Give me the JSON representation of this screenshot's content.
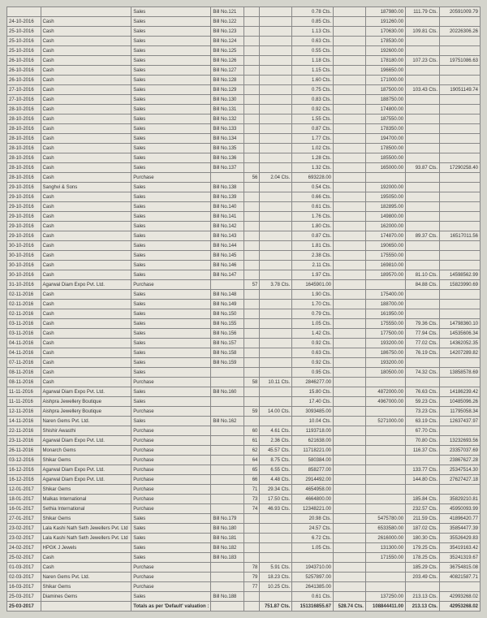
{
  "table": {
    "background": "#e8e6de",
    "border_color": "#888",
    "font_size": 6,
    "rows": [
      [
        "",
        "",
        "Sales",
        "Bill No.121",
        "",
        "",
        "0.78 Cts.",
        "",
        "187980.00",
        "111.79 Cts.",
        "20591009.79"
      ],
      [
        "24-10-2016",
        "Cash",
        "Sales",
        "Bill No.122",
        "",
        "",
        "0.85 Cts.",
        "",
        "191260.00",
        "",
        ""
      ],
      [
        "25-10-2016",
        "Cash",
        "Sales",
        "Bill No.123",
        "",
        "",
        "1.13 Cts.",
        "",
        "170630.00",
        "109.81 Cts.",
        "20226306.26"
      ],
      [
        "25-10-2016",
        "Cash",
        "Sales",
        "Bill No.124",
        "",
        "",
        "0.63 Cts.",
        "",
        "178530.00",
        "",
        ""
      ],
      [
        "25-10-2016",
        "Cash",
        "Sales",
        "Bill No.125",
        "",
        "",
        "0.55 Cts.",
        "",
        "192600.00",
        "",
        ""
      ],
      [
        "26-10-2016",
        "Cash",
        "Sales",
        "Bill No.126",
        "",
        "",
        "1.18 Cts.",
        "",
        "178180.00",
        "107.23 Cts.",
        "19751086.63"
      ],
      [
        "26-10-2016",
        "Cash",
        "Sales",
        "Bill No.127",
        "",
        "",
        "1.15 Cts.",
        "",
        "196650.00",
        "",
        ""
      ],
      [
        "26-10-2016",
        "Cash",
        "Sales",
        "Bill No.128",
        "",
        "",
        "1.60 Cts.",
        "",
        "171000.00",
        "",
        ""
      ],
      [
        "27-10-2016",
        "Cash",
        "Sales",
        "Bill No.129",
        "",
        "",
        "0.75 Cts.",
        "",
        "187500.00",
        "103.43 Cts.",
        "19051149.74"
      ],
      [
        "27-10-2016",
        "Cash",
        "Sales",
        "Bill No.130",
        "",
        "",
        "0.83 Cts.",
        "",
        "188750.00",
        "",
        ""
      ],
      [
        "28-10-2016",
        "Cash",
        "Sales",
        "Bill No.131",
        "",
        "",
        "0.92 Cts.",
        "",
        "174800.00",
        "",
        ""
      ],
      [
        "28-10-2016",
        "Cash",
        "Sales",
        "Bill No.132",
        "",
        "",
        "1.55 Cts.",
        "",
        "187550.00",
        "",
        ""
      ],
      [
        "28-10-2016",
        "Cash",
        "Sales",
        "Bill No.133",
        "",
        "",
        "0.87 Cts.",
        "",
        "178350.00",
        "",
        ""
      ],
      [
        "28-10-2016",
        "Cash",
        "Sales",
        "Bill No.134",
        "",
        "",
        "1.77 Cts.",
        "",
        "194700.00",
        "",
        ""
      ],
      [
        "28-10-2016",
        "Cash",
        "Sales",
        "Bill No.135",
        "",
        "",
        "1.02 Cts.",
        "",
        "178500.00",
        "",
        ""
      ],
      [
        "28-10-2016",
        "Cash",
        "Sales",
        "Bill No.136",
        "",
        "",
        "1.28 Cts.",
        "",
        "185500.00",
        "",
        ""
      ],
      [
        "28-10-2016",
        "Cash",
        "Sales",
        "Bill No.137",
        "",
        "",
        "1.32 Cts.",
        "",
        "165000.00",
        "93.87 Cts.",
        "17290258.40"
      ],
      [
        "28-10-2016",
        "Cash",
        "Purchase",
        "",
        "56",
        "2.04 Cts.",
        "693228.00",
        "",
        "",
        "",
        ""
      ],
      [
        "29-10-2016",
        "Sanghvi & Sons",
        "Sales",
        "Bill No.138",
        "",
        "",
        "0.54 Cts.",
        "",
        "192000.00",
        "",
        ""
      ],
      [
        "29-10-2016",
        "Cash",
        "Sales",
        "Bill No.139",
        "",
        "",
        "0.66 Cts.",
        "",
        "195050.00",
        "",
        ""
      ],
      [
        "29-10-2016",
        "Cash",
        "Sales",
        "Bill No.140",
        "",
        "",
        "0.61 Cts.",
        "",
        "182895.00",
        "",
        ""
      ],
      [
        "29-10-2016",
        "Cash",
        "Sales",
        "Bill No.141",
        "",
        "",
        "1.76 Cts.",
        "",
        "149800.00",
        "",
        ""
      ],
      [
        "29-10-2016",
        "Cash",
        "Sales",
        "Bill No.142",
        "",
        "",
        "1.80 Cts.",
        "",
        "162000.00",
        "",
        ""
      ],
      [
        "29-10-2016",
        "Cash",
        "Sales",
        "Bill No.143",
        "",
        "",
        "0.87 Cts.",
        "",
        "174870.00",
        "89.37 Cts.",
        "16517011.56"
      ],
      [
        "30-10-2016",
        "Cash",
        "Sales",
        "Bill No.144",
        "",
        "",
        "1.81 Cts.",
        "",
        "190650.00",
        "",
        ""
      ],
      [
        "30-10-2016",
        "Cash",
        "Sales",
        "Bill No.145",
        "",
        "",
        "2.38 Cts.",
        "",
        "175550.00",
        "",
        ""
      ],
      [
        "30-10-2016",
        "Cash",
        "Sales",
        "Bill No.146",
        "",
        "",
        "2.11 Cts.",
        "",
        "169810.00",
        "",
        ""
      ],
      [
        "30-10-2016",
        "Cash",
        "Sales",
        "Bill No.147",
        "",
        "",
        "1.97 Cts.",
        "",
        "189570.00",
        "81.10 Cts.",
        "14598562.99"
      ],
      [
        "31-10-2016",
        "Agarwal Diam Expo Pvt. Ltd.",
        "Purchase",
        "",
        "57",
        "3.78 Cts.",
        "1645901.00",
        "",
        "",
        "84.88 Cts.",
        "15823990.69"
      ],
      [
        "02-11-2016",
        "Cash",
        "Sales",
        "Bill No.148",
        "",
        "",
        "1.90 Cts.",
        "",
        "175400.00",
        "",
        ""
      ],
      [
        "02-11-2016",
        "Cash",
        "Sales",
        "Bill No.149",
        "",
        "",
        "1.70 Cts.",
        "",
        "188700.00",
        "",
        ""
      ],
      [
        "02-11-2016",
        "Cash",
        "Sales",
        "Bill No.150",
        "",
        "",
        "0.79 Cts.",
        "",
        "161950.00",
        "",
        ""
      ],
      [
        "03-11-2016",
        "Cash",
        "Sales",
        "Bill No.155",
        "",
        "",
        "1.05 Cts.",
        "",
        "175550.00",
        "79.36 Cts.",
        "14798360.10"
      ],
      [
        "03-11-2016",
        "Cash",
        "Sales",
        "Bill No.156",
        "",
        "",
        "1.42 Cts.",
        "",
        "177500.00",
        "77.94 Cts.",
        "14535606.34"
      ],
      [
        "04-11-2016",
        "Cash",
        "Sales",
        "Bill No.157",
        "",
        "",
        "0.92 Cts.",
        "",
        "193200.00",
        "77.02 Cts.",
        "14362052.35"
      ],
      [
        "04-11-2016",
        "Cash",
        "Sales",
        "Bill No.158",
        "",
        "",
        "0.63 Cts.",
        "",
        "186750.00",
        "76.19 Cts.",
        "14207289.82"
      ],
      [
        "07-11-2016",
        "Cash",
        "Sales",
        "Bill No.159",
        "",
        "",
        "0.92 Cts.",
        "",
        "193200.00",
        "",
        ""
      ],
      [
        "08-11-2016",
        "Cash",
        "Sales",
        "",
        "",
        "",
        "0.95 Cts.",
        "",
        "180500.00",
        "74.32 Cts.",
        "13858578.69"
      ],
      [
        "08-11-2016",
        "Cash",
        "Purchase",
        "",
        "58",
        "10.11 Cts.",
        "2846277.00",
        "",
        "",
        "",
        ""
      ],
      [
        "11-11-2016",
        "Agarwal Diam Expo Pvt. Ltd.",
        "Sales",
        "Bill No.160",
        "",
        "",
        "15.80 Cts.",
        "",
        "4872000.00",
        "76.63 Cts.",
        "14186239.42"
      ],
      [
        "11-11-2016",
        "Aishpra Jewellery Boutique",
        "Sales",
        "",
        "",
        "",
        "17.40 Cts.",
        "",
        "4967000.00",
        "59.23 Cts.",
        "10485096.26"
      ],
      [
        "12-11-2016",
        "Aishpra Jewellery Boutique",
        "Purchase",
        "",
        "59",
        "14.00 Cts.",
        "3093485.00",
        "",
        "",
        "73.23 Cts.",
        "11795058.34"
      ],
      [
        "14-11-2016",
        "Naren Gems Pvt. Ltd.",
        "Sales",
        "Bill No.162",
        "",
        "",
        "10.04 Cts.",
        "",
        "5271000.00",
        "63.19 Cts.",
        "12637437.97"
      ],
      [
        "22-11-2016",
        "Shishir Awasthi",
        "Purchase",
        "",
        "60",
        "4.61 Cts.",
        "1193718.00",
        "",
        "",
        "67.70 Cts.",
        ""
      ],
      [
        "23-11-2016",
        "Agarwal Diam Expo Pvt. Ltd.",
        "Purchase",
        "",
        "61",
        "2.36 Cts.",
        "621638.00",
        "",
        "",
        "70.80 Cts.",
        "13232693.56"
      ],
      [
        "26-11-2016",
        "Monarch Gems",
        "Purchase",
        "",
        "62",
        "45.57 Cts.",
        "11718221.00",
        "",
        "",
        "116.37 Cts.",
        "23357037.69"
      ],
      [
        "03-12-2016",
        "Shikar Gems",
        "Purchase",
        "",
        "64",
        "8.75 Cts.",
        "580384.00",
        "",
        "",
        "",
        "23867627.28"
      ],
      [
        "16-12-2016",
        "Agarwal Diam Expo Pvt. Ltd.",
        "Purchase",
        "",
        "65",
        "6.55 Cts.",
        "858277.00",
        "",
        "",
        "133.77 Cts.",
        "25347514.30"
      ],
      [
        "16-12-2016",
        "Agarwal Diam Expo Pvt. Ltd.",
        "Purchase",
        "",
        "66",
        "4.48 Cts.",
        "2914492.00",
        "",
        "",
        "144.80 Cts.",
        "27627427.18"
      ],
      [
        "12-01-2017",
        "Shikar Gems",
        "Purchase",
        "",
        "71",
        "29.34 Cts.",
        "4654958.00",
        "",
        "",
        "",
        ""
      ],
      [
        "18-01-2017",
        "Malkas International",
        "Purchase",
        "",
        "73",
        "17.50 Cts.",
        "4664800.00",
        "",
        "",
        "185.84 Cts.",
        "35829210.81"
      ],
      [
        "16-01-2017",
        "Sethia International",
        "Purchase",
        "",
        "74",
        "46.93 Cts.",
        "12348221.00",
        "",
        "",
        "232.57 Cts.",
        "45950093.99"
      ],
      [
        "27-01-2017",
        "Shikar Gems",
        "Sales",
        "Bill No.179",
        "",
        "",
        "20.98 Cts.",
        "",
        "5475780.00",
        "211.59 Cts.",
        "41896420.77"
      ],
      [
        "23-02-2017",
        "Lala Kashi Nath Seth Jewellers Pvt. Ltd",
        "Sales",
        "Bill No.180",
        "",
        "",
        "24.57 Cts.",
        "",
        "6533580.00",
        "187.02 Cts.",
        "35854477.39"
      ],
      [
        "23-02-2017",
        "Lala Kashi Nath Seth Jewellers Pvt. Ltd",
        "Sales",
        "Bill No.181",
        "",
        "",
        "6.72 Cts.",
        "",
        "2616000.00",
        "180.30 Cts.",
        "35526429.83"
      ],
      [
        "24-02-2017",
        "HPGK J Jewels",
        "Sales",
        "Bill No.182",
        "",
        "",
        "1.05 Cts.",
        "",
        "131300.00",
        "179.25 Cts.",
        "35419163.42"
      ],
      [
        "25-02-2017",
        "Cash",
        "Sales",
        "Bill No.183",
        "",
        "",
        "",
        "",
        "171550.00",
        "178.25 Cts.",
        "35241319.67"
      ],
      [
        "01-03-2017",
        "Cash",
        "Purchase",
        "",
        "78",
        "5.91 Cts.",
        "1943710.00",
        "",
        "",
        "185.29 Cts.",
        "36754815.08"
      ],
      [
        "02-03-2017",
        "Naren Gems Pvt. Ltd.",
        "Purchase",
        "",
        "79",
        "18.23 Cts.",
        "5257897.00",
        "",
        "",
        "203.49 Cts.",
        "40821587.71"
      ],
      [
        "16-03-2017",
        "Shikar Gems",
        "Purchase",
        "",
        "77",
        "10.25 Cts.",
        "2641385.00",
        "",
        "",
        "",
        ""
      ],
      [
        "25-03-2017",
        "Diamines Gems",
        "Sales",
        "Bill No.188",
        "",
        "",
        "0.61 Cts.",
        "",
        "137250.00",
        "213.13 Cts.",
        "42993268.02"
      ],
      [
        "25-03-2017",
        "",
        "Totals as per 'Default' valuation :",
        "",
        "",
        "751.87 Cts.",
        "151316855.67",
        "528.74 Cts.",
        "108844411.00",
        "213.13 Cts.",
        "42953268.02"
      ]
    ]
  }
}
